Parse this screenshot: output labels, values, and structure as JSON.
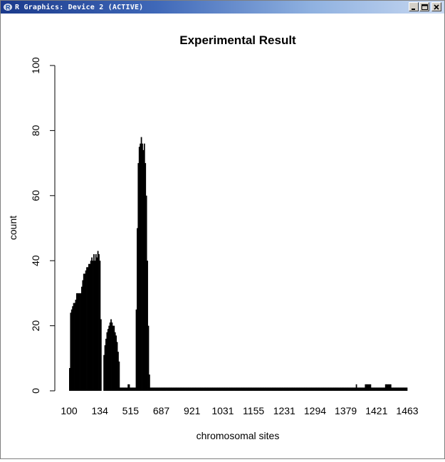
{
  "window": {
    "title": "R Graphics: Device 2 (ACTIVE)",
    "app_icon": "r-logo-icon",
    "controls": [
      "minimize-icon",
      "maximize-icon",
      "close-icon"
    ]
  },
  "chart_data": {
    "type": "bar",
    "title": "Experimental Result",
    "xlabel": "chromosomal sites",
    "ylabel": "count",
    "ylim": [
      0,
      100
    ],
    "yticks": [
      0,
      20,
      40,
      60,
      80,
      100
    ],
    "xtick_labels": [
      "100",
      "134",
      "515",
      "687",
      "921",
      "1031",
      "1155",
      "1231",
      "1294",
      "1379",
      "1421",
      "1463"
    ],
    "bar_color": "#000000",
    "grid": false,
    "legend": "none",
    "values": [
      7,
      24,
      25,
      26,
      27,
      27,
      28,
      30,
      30,
      30,
      30,
      30,
      32,
      34,
      36,
      36,
      37,
      38,
      38,
      39,
      39,
      40,
      41,
      40,
      42,
      40,
      42,
      41,
      43,
      42,
      40,
      22,
      0,
      0,
      11,
      14,
      16,
      18,
      19,
      20,
      21,
      22,
      21,
      20,
      20,
      18,
      17,
      15,
      12,
      9,
      1,
      1,
      1,
      1,
      1,
      1,
      1,
      1,
      2,
      2,
      1,
      1,
      1,
      1,
      1,
      1,
      25,
      50,
      70,
      75,
      76,
      78,
      76,
      74,
      76,
      70,
      60,
      40,
      20,
      5,
      1,
      1,
      1,
      1,
      1,
      1,
      1,
      1,
      1,
      1,
      1,
      1,
      1,
      1,
      1,
      1,
      1,
      1,
      1,
      1,
      1,
      1,
      1,
      1,
      1,
      1,
      1,
      1,
      1,
      1,
      1,
      1,
      1,
      1,
      1,
      1,
      1,
      1,
      1,
      1,
      1,
      1,
      1,
      1,
      1,
      1,
      1,
      1,
      1,
      1,
      1,
      1,
      1,
      1,
      1,
      1,
      1,
      1,
      1,
      1,
      1,
      1,
      1,
      1,
      1,
      1,
      1,
      1,
      1,
      1,
      1,
      1,
      1,
      1,
      1,
      1,
      1,
      1,
      1,
      1,
      1,
      1,
      1,
      1,
      1,
      1,
      1,
      1,
      1,
      1,
      1,
      1,
      1,
      1,
      1,
      1,
      1,
      1,
      1,
      1,
      1,
      1,
      1,
      1,
      1,
      1,
      1,
      1,
      1,
      1,
      1,
      1,
      1,
      1,
      1,
      1,
      1,
      1,
      1,
      1,
      1,
      1,
      1,
      1,
      1,
      1,
      1,
      1,
      1,
      1,
      1,
      1,
      1,
      1,
      1,
      1,
      1,
      1,
      1,
      1,
      1,
      1,
      1,
      1,
      1,
      1,
      1,
      1,
      1,
      1,
      1,
      1,
      1,
      1,
      1,
      1,
      1,
      1,
      1,
      1,
      1,
      1,
      1,
      1,
      1,
      1,
      1,
      1,
      1,
      1,
      1,
      1,
      1,
      1,
      1,
      1,
      1,
      1,
      1,
      1,
      1,
      1,
      1,
      1,
      1,
      1,
      1,
      1,
      1,
      1,
      1,
      1,
      1,
      1,
      1,
      1,
      1,
      1,
      1,
      1,
      1,
      1,
      1,
      1,
      2,
      1,
      1,
      1,
      1,
      1,
      1,
      1,
      1,
      2,
      2,
      2,
      2,
      2,
      2,
      1,
      1,
      1,
      1,
      1,
      1,
      1,
      1,
      1,
      1,
      1,
      1,
      1,
      1,
      2,
      2,
      2,
      2,
      2,
      2,
      1,
      1,
      1,
      1,
      1,
      1,
      1,
      1,
      1,
      1,
      1,
      1,
      1,
      1,
      1,
      1
    ]
  }
}
